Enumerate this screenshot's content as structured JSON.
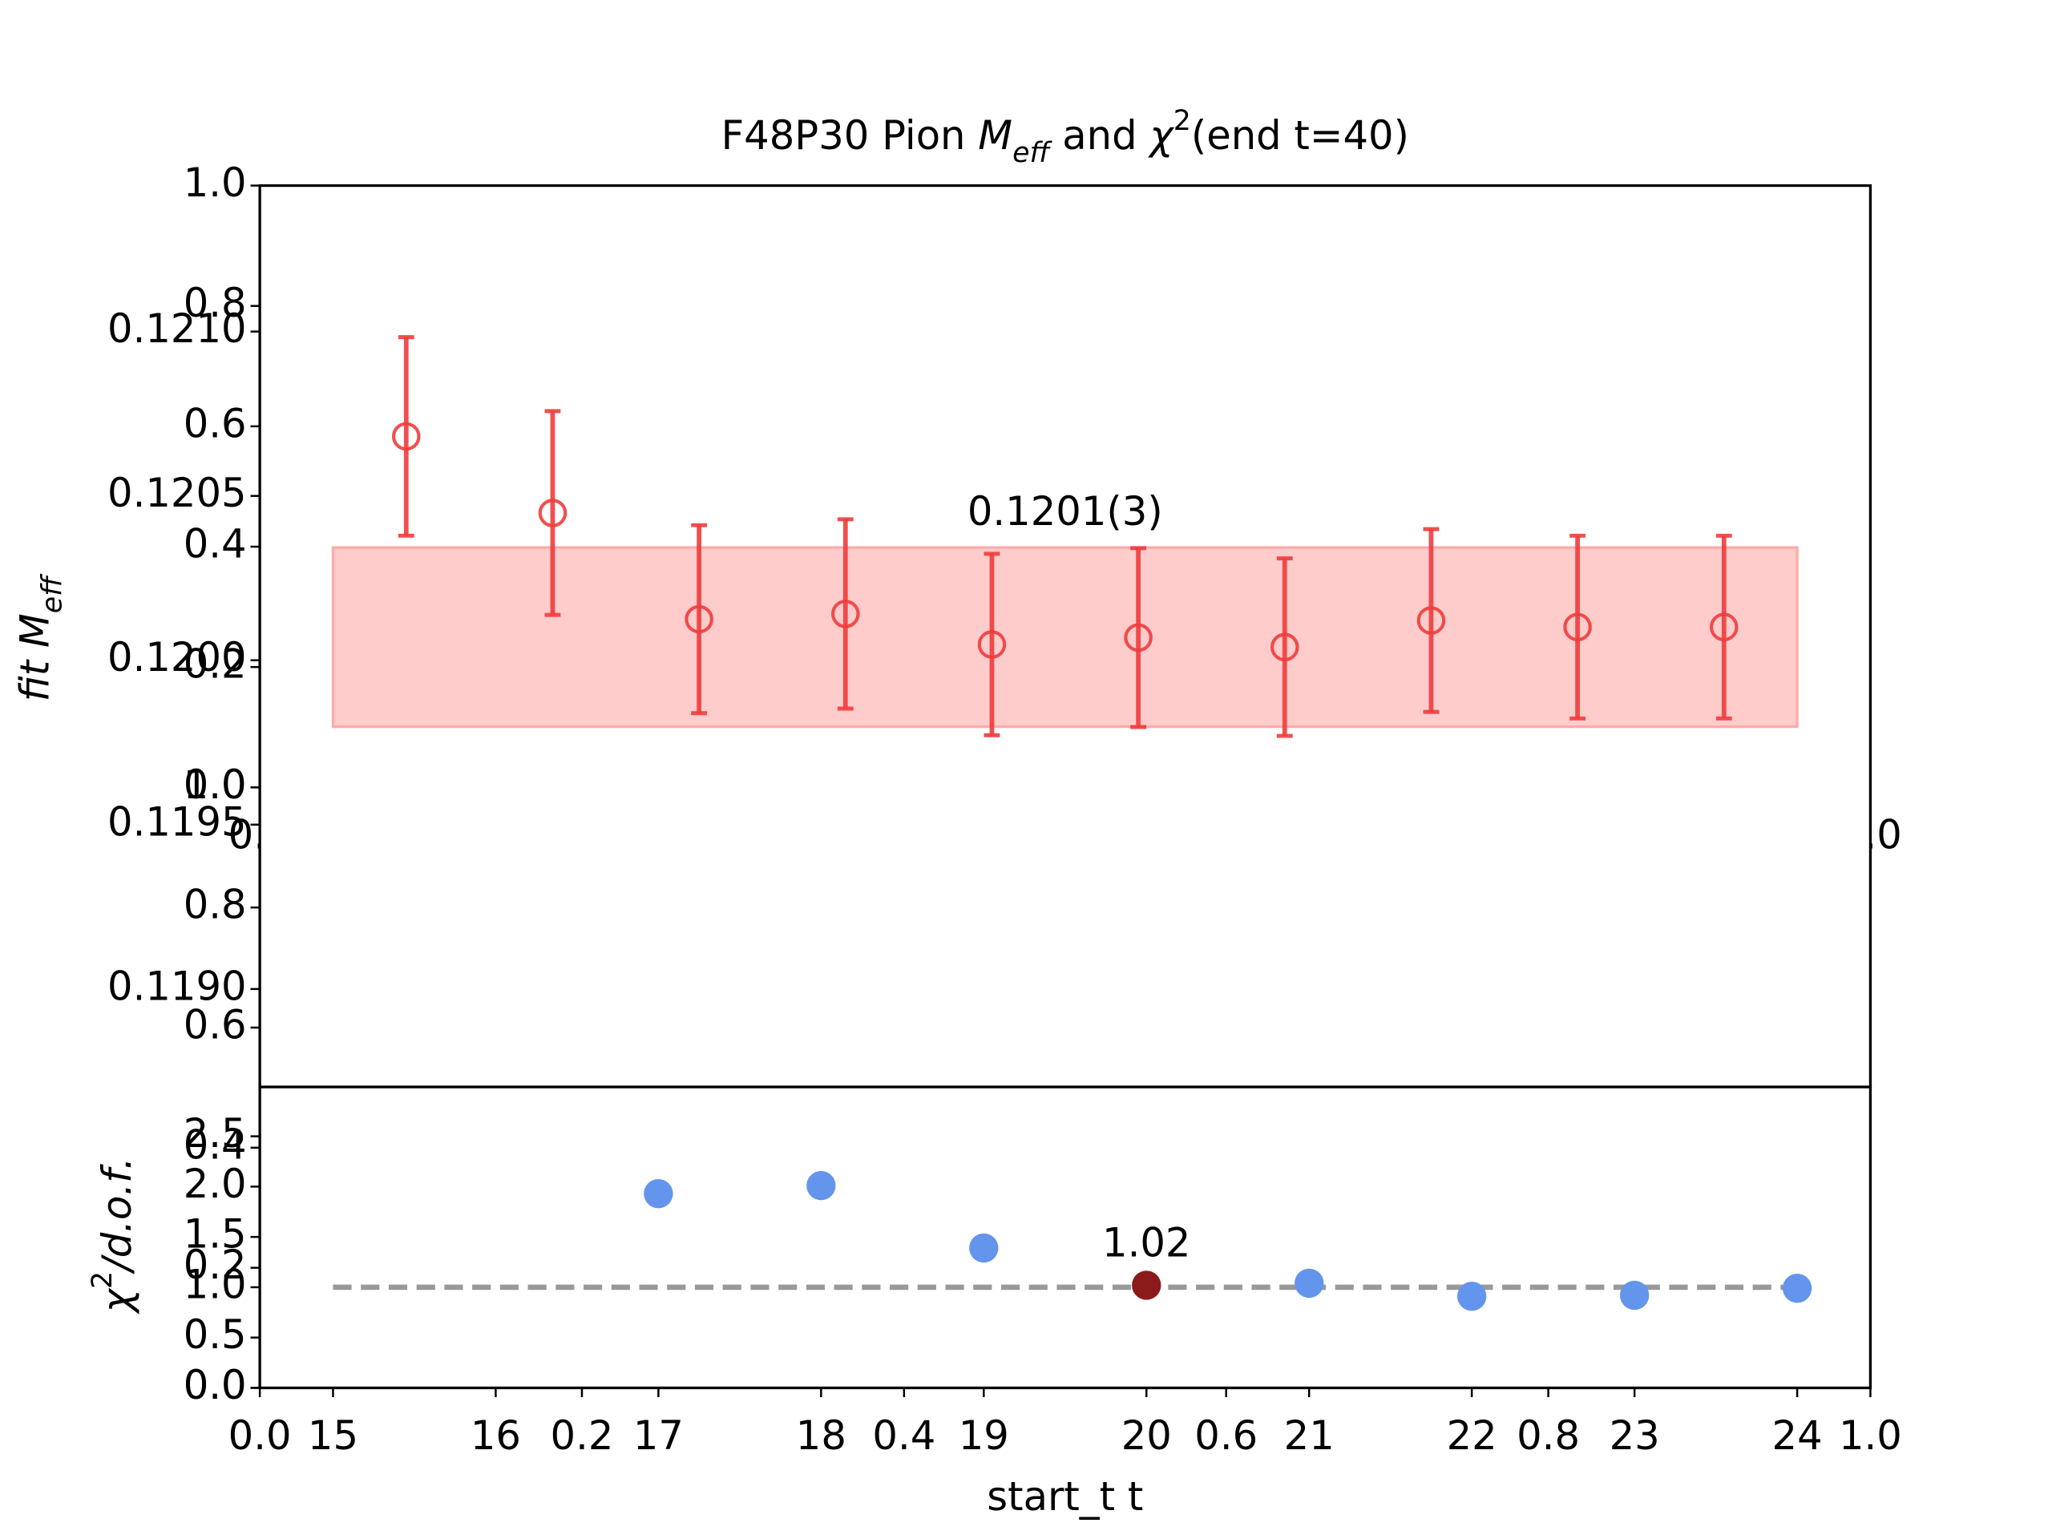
{
  "chart_data": [
    {
      "type": "errorbar",
      "title": [
        "F48P30 Pion ",
        "M",
        "eff",
        " and ",
        "χ",
        "2",
        "(end t=40)"
      ],
      "ylabel": [
        "fit M",
        "eff"
      ],
      "x": [
        15.45,
        16.35,
        17.25,
        18.15,
        19.05,
        19.95,
        20.85,
        21.75,
        22.65,
        23.55
      ],
      "values": [
        0.120681,
        0.120448,
        0.120125,
        0.120141,
        0.120048,
        0.120069,
        0.12004,
        0.120121,
        0.120101,
        0.120101
      ],
      "errors": [
        0.000302,
        0.00031,
        0.000286,
        0.000288,
        0.000276,
        0.000272,
        0.00027,
        0.000278,
        0.000278,
        0.000278
      ],
      "color": "#f03c3c",
      "band": {
        "x": [
          15,
          24
        ],
        "lower": 0.119798,
        "upper": 0.120343,
        "label": "0.1201(3)",
        "color": "#ffcccc"
      },
      "xlim": [
        14.55,
        24.45
      ],
      "ylim": [
        0.118702,
        0.121444
      ],
      "yticks": [
        {
          "value": 0.119,
          "label": "0.1190"
        },
        0.1195,
        {
          "value": 0.12,
          "label": "0.1200"
        },
        0.1205,
        {
          "value": 0.121,
          "label": "0.1210"
        }
      ]
    },
    {
      "type": "scatter",
      "ylabel": [
        "χ",
        "2",
        "/d.o.f."
      ],
      "xlabel": "start_t t",
      "x": [
        17,
        18,
        19,
        20,
        21,
        22,
        23,
        24
      ],
      "values": [
        1.93,
        2.01,
        1.39,
        1.02,
        1.04,
        0.91,
        0.92,
        0.99
      ],
      "color": "#6495ed",
      "highlight": {
        "x": 20,
        "label": "1.02",
        "color": "#8b1a1a"
      },
      "reference_line": {
        "y": 1,
        "x": [
          15,
          24
        ],
        "color": "#999999"
      },
      "xlim": [
        14.55,
        24.45
      ],
      "xticks": [
        15,
        16,
        17,
        18,
        19,
        20,
        21,
        22,
        23,
        24
      ],
      "ylim": [
        0,
        2.99
      ],
      "yticks": [
        {
          "value": 0,
          "label": "0.0"
        },
        0.5,
        {
          "value": 1,
          "label": "1.0"
        },
        1.5,
        {
          "value": 2,
          "label": "2.0"
        },
        2.5
      ]
    },
    {
      "type": "axes",
      "xlim": [
        0,
        1
      ],
      "ylim": [
        0,
        1
      ],
      "xticks": [
        {
          "value": 0,
          "label": "0.0"
        },
        0.2,
        0.4,
        0.6,
        0.8,
        {
          "value": 1,
          "label": "1.0"
        }
      ],
      "yticks": [
        {
          "value": 0,
          "label": "0.0"
        },
        0.2,
        0.4,
        0.6,
        0.8,
        {
          "value": 1,
          "label": "1.0"
        }
      ]
    },
    {
      "type": "axes",
      "xlim": [
        0,
        1
      ],
      "ylim": [
        0,
        1
      ],
      "xticks": [
        {
          "value": 0,
          "label": "0.0"
        },
        0.2,
        0.4,
        0.6,
        0.8,
        {
          "value": 1,
          "label": "1.0"
        }
      ],
      "yticks": [
        {
          "value": 0,
          "label": "0.0"
        },
        0.2,
        0.4,
        0.6,
        0.8,
        {
          "value": 1,
          "label": "1.0"
        }
      ]
    }
  ]
}
